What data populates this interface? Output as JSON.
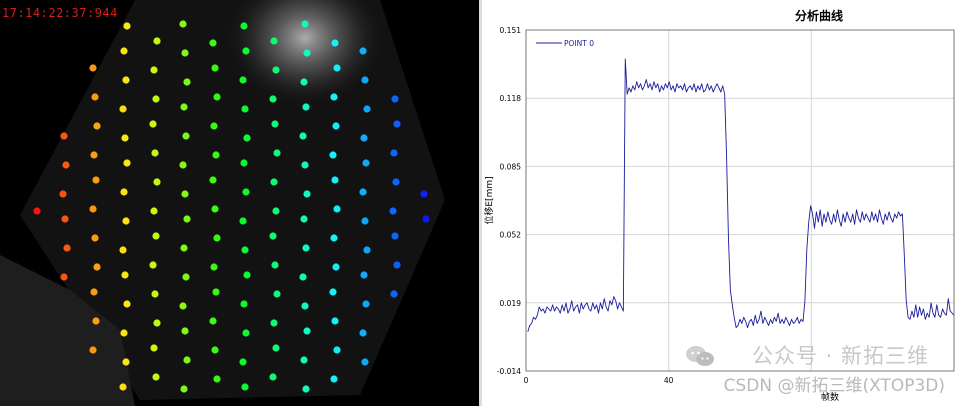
{
  "left_image": {
    "timestamp": "17:14:22:37:944"
  },
  "chart_data": {
    "type": "line",
    "title": "分析曲线",
    "xlabel": "帧数",
    "ylabel": "位移E[mm]",
    "xlim": [
      0,
      120
    ],
    "ylim": [
      -0.014,
      0.151
    ],
    "x_ticks": [
      "0",
      "40"
    ],
    "y_ticks": [
      "0.151",
      "0.118",
      "0.085",
      "0.052",
      "0.019",
      "-0.014"
    ],
    "grid": true,
    "legend_position": "top-left",
    "series": [
      {
        "name": "POINT 0",
        "color": "#1c1c9c",
        "values": [
          0.005,
          0.008,
          0.009,
          0.012,
          0.011,
          0.013,
          0.017,
          0.015,
          0.016,
          0.014,
          0.017,
          0.016,
          0.015,
          0.018,
          0.015,
          0.017,
          0.016,
          0.014,
          0.018,
          0.015,
          0.019,
          0.014,
          0.016,
          0.02,
          0.015,
          0.017,
          0.018,
          0.014,
          0.019,
          0.016,
          0.018,
          0.019,
          0.016,
          0.015,
          0.019,
          0.016,
          0.018,
          0.014,
          0.019,
          0.016,
          0.021,
          0.017,
          0.015,
          0.02,
          0.018,
          0.022,
          0.02,
          0.016,
          0.019,
          0.017,
          0.015,
          0.137,
          0.12,
          0.123,
          0.121,
          0.124,
          0.122,
          0.126,
          0.123,
          0.125,
          0.122,
          0.124,
          0.127,
          0.123,
          0.125,
          0.122,
          0.126,
          0.123,
          0.125,
          0.121,
          0.124,
          0.122,
          0.125,
          0.123,
          0.126,
          0.122,
          0.124,
          0.121,
          0.125,
          0.123,
          0.124,
          0.122,
          0.125,
          0.121,
          0.123,
          0.124,
          0.122,
          0.125,
          0.121,
          0.124,
          0.122,
          0.125,
          0.121,
          0.122,
          0.125,
          0.122,
          0.124,
          0.121,
          0.123,
          0.125,
          0.123,
          0.121,
          0.124,
          0.12,
          0.09,
          0.05,
          0.025,
          0.018,
          0.012,
          0.007,
          0.008,
          0.011,
          0.009,
          0.012,
          0.01,
          0.007,
          0.01,
          0.011,
          0.008,
          0.013,
          0.009,
          0.011,
          0.015,
          0.009,
          0.012,
          0.01,
          0.008,
          0.011,
          0.009,
          0.012,
          0.01,
          0.014,
          0.009,
          0.011,
          0.009,
          0.012,
          0.01,
          0.008,
          0.011,
          0.009,
          0.01,
          0.012,
          0.009,
          0.011,
          0.01,
          0.02,
          0.045,
          0.058,
          0.066,
          0.062,
          0.055,
          0.063,
          0.058,
          0.064,
          0.056,
          0.062,
          0.058,
          0.063,
          0.059,
          0.057,
          0.062,
          0.058,
          0.064,
          0.059,
          0.056,
          0.062,
          0.058,
          0.063,
          0.06,
          0.058,
          0.062,
          0.057,
          0.064,
          0.06,
          0.058,
          0.063,
          0.059,
          0.062,
          0.06,
          0.058,
          0.063,
          0.059,
          0.062,
          0.058,
          0.064,
          0.06,
          0.057,
          0.062,
          0.059,
          0.063,
          0.06,
          0.058,
          0.062,
          0.06,
          0.063,
          0.061,
          0.062,
          0.042,
          0.02,
          0.012,
          0.011,
          0.015,
          0.012,
          0.018,
          0.012,
          0.017,
          0.013,
          0.016,
          0.011,
          0.014,
          0.012,
          0.019,
          0.014,
          0.012,
          0.018,
          0.013,
          0.012,
          0.016,
          0.014,
          0.013,
          0.021,
          0.015,
          0.014,
          0.013
        ]
      }
    ]
  },
  "watermark": {
    "line1": "公众号 · 新拓三维",
    "line2": "CSDN @新拓三维(XTOP3D)"
  }
}
